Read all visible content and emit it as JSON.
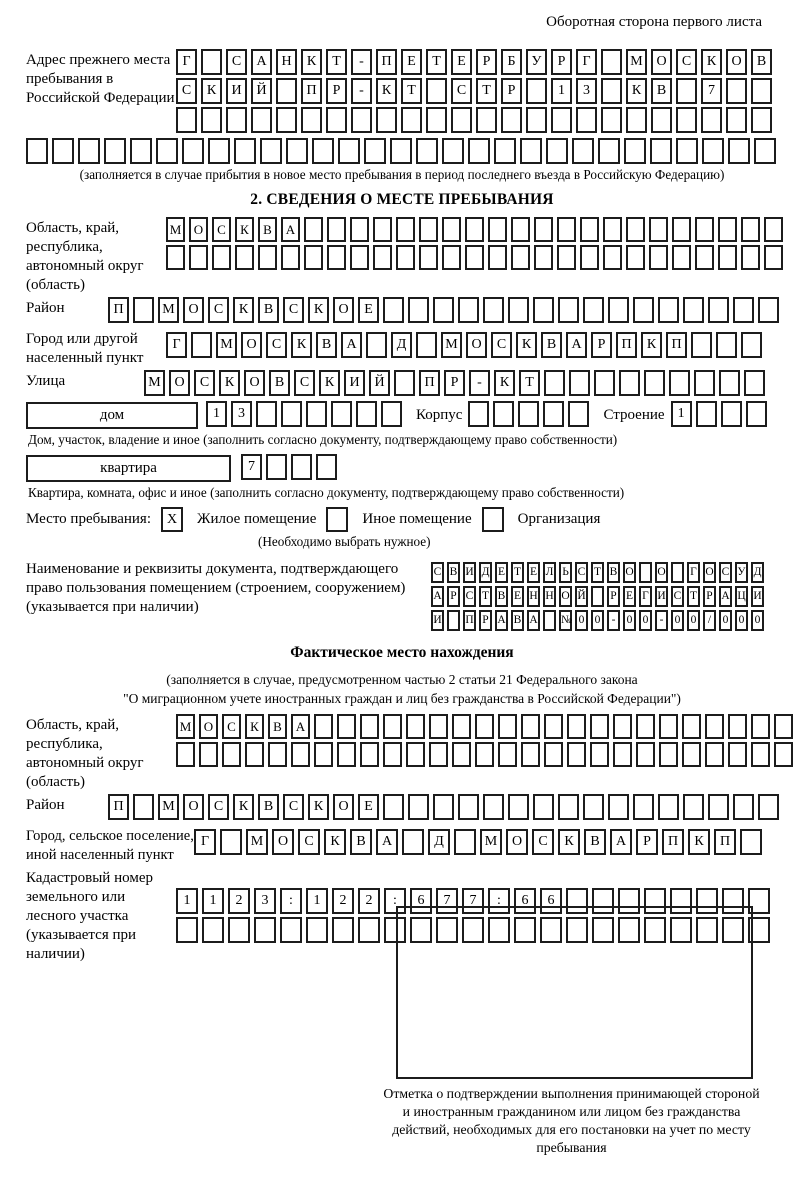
{
  "page": {
    "header_note": "Оборотная сторона первого листа"
  },
  "prev_address": {
    "label": "Адрес прежнего места пребывания в Российской Федерации",
    "row1": {
      "chars": "Г САНКТ-ПЕТЕРБУРГ МОСКОВ",
      "boxes": 24
    },
    "row2": {
      "chars": "СКИЙ ПР-КТ СТР 13 КВ 7",
      "boxes": 24
    },
    "row3": {
      "chars": "",
      "boxes": 24
    },
    "row4": {
      "chars": "",
      "boxes": 29
    },
    "caption": "(заполняется в случае прибытия в новое место пребывания в период последнего въезда в Российскую Федерацию)"
  },
  "section2": {
    "title": "2. СВЕДЕНИЯ О МЕСТЕ ПРЕБЫВАНИЯ",
    "region": {
      "label": "Область, край, республика, автономный округ (область)",
      "row1": {
        "chars": "МОСКВА",
        "boxes": 27
      },
      "row2": {
        "chars": "",
        "boxes": 27
      }
    },
    "district": {
      "label": "Район",
      "row": {
        "chars": "П МОСКВСКОЕ",
        "boxes": 27
      }
    },
    "city": {
      "label": "Город или другой населенный пункт",
      "row": {
        "chars": "Г МОСКВА Д МОСКВАРПКП",
        "boxes": 24
      }
    },
    "street": {
      "label": "Улица",
      "row": {
        "chars": "МОСКОВСКИЙ ПР-КТ",
        "boxes": 25
      }
    },
    "house": {
      "box_label": "дом",
      "cells": {
        "chars": "13",
        "boxes": 8
      },
      "korpus_label": "Корпус",
      "korpus_cells": {
        "chars": "",
        "boxes": 5
      },
      "stroenie_label": "Строение",
      "stroenie_cells": {
        "chars": "1",
        "boxes": 4
      },
      "caption": "Дом, участок, владение и иное (заполнить согласно документу, подтверждающему право собственности)"
    },
    "apartment": {
      "box_label": "квартира",
      "cells": {
        "chars": "7",
        "boxes": 4
      },
      "caption": "Квартира, комната, офис и иное (заполнить согласно документу, подтверждающему право собственности)"
    },
    "stay_type": {
      "label": "Место пребывания:",
      "options": [
        {
          "label": "Жилое помещение",
          "mark": "X"
        },
        {
          "label": "Иное помещение",
          "mark": ""
        },
        {
          "label": "Организация",
          "mark": ""
        }
      ],
      "hint": "(Необходимо выбрать нужное)"
    },
    "document": {
      "label": "Наименование и реквизиты документа, подтверждающего право пользования помещением (строением, сооружением) (указывается при наличии)",
      "row1": {
        "chars": "СВИДЕТЕЛЬСТВО О ГОСУД",
        "boxes": 21
      },
      "row2": {
        "chars": "АРСТВЕННОЙ РЕГИСТРАЦИ",
        "boxes": 21
      },
      "row3": {
        "chars": "И ПРАВА №00-00-00/000",
        "boxes": 21
      }
    }
  },
  "actual_location": {
    "title": "Фактическое место нахождения",
    "note1": "(заполняется в случае, предусмотренном частью 2 статьи 21 Федерального закона",
    "note2": "\"О миграционном учете иностранных граждан и лиц без гражданства в Российской Федерации\")",
    "region": {
      "label": "Область, край, республика, автономный округ (область)",
      "row1": {
        "chars": "МОСКВА",
        "boxes": 27
      },
      "row2": {
        "chars": "",
        "boxes": 27
      }
    },
    "district": {
      "label": "Район",
      "row": {
        "chars": "П МОСКВСКОЕ",
        "boxes": 27
      }
    },
    "city": {
      "label": "Город, сельское поселение, иной населенный пункт",
      "row": {
        "chars": "Г МОСКВА Д МОСКВАРПКП",
        "boxes": 22
      }
    },
    "cadastral": {
      "label": "Кадастровый номер земельного или лесного участка (указывается при наличии)",
      "row1": {
        "chars": "1123:122:677:66",
        "boxes": 23
      },
      "row2": {
        "chars": "",
        "boxes": 23
      }
    },
    "stamp_caption": "Отметка о подтверждении выполнения принимающей стороной и иностранным гражданином или лицом без гражданства действий, необходимых для его постановки на учет по месту пребывания"
  }
}
